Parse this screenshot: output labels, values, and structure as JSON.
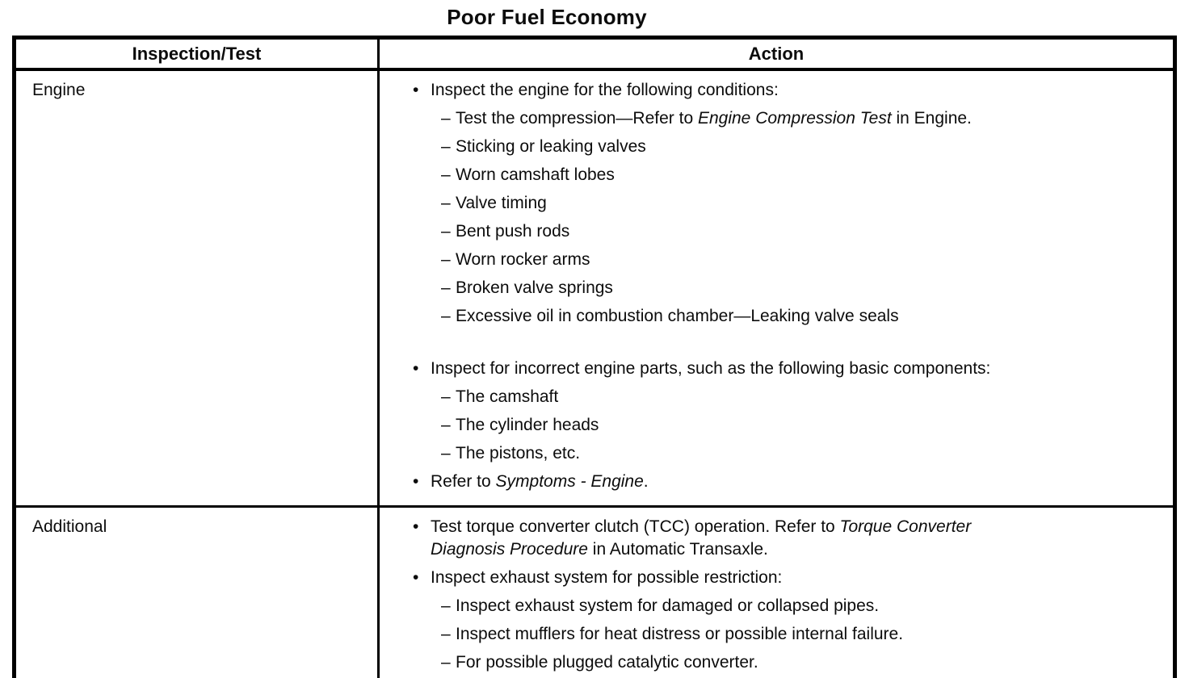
{
  "title": "Poor Fuel Economy",
  "glyphs": {
    "bullet": "•",
    "dash": "–"
  },
  "colors": {
    "ink": "#0c0c0c",
    "paper": "#ffffff",
    "border": "#000000"
  },
  "table": {
    "headers": [
      "Inspection/Test",
      "Action"
    ],
    "rows": [
      {
        "inspection": "Engine",
        "actions": [
          {
            "kind": "bullet",
            "segments": [
              {
                "t": "Inspect the engine for the following conditions:"
              }
            ]
          },
          {
            "kind": "dash",
            "segments": [
              {
                "t": "Test the compression—Refer to "
              },
              {
                "t": "Engine Compression Test",
                "i": true
              },
              {
                "t": " in Engine."
              }
            ]
          },
          {
            "kind": "dash",
            "segments": [
              {
                "t": "Sticking or leaking valves"
              }
            ]
          },
          {
            "kind": "dash",
            "segments": [
              {
                "t": "Worn camshaft lobes"
              }
            ]
          },
          {
            "kind": "dash",
            "segments": [
              {
                "t": "Valve timing"
              }
            ]
          },
          {
            "kind": "dash",
            "segments": [
              {
                "t": "Bent push rods"
              }
            ]
          },
          {
            "kind": "dash",
            "segments": [
              {
                "t": "Worn rocker arms"
              }
            ]
          },
          {
            "kind": "dash",
            "segments": [
              {
                "t": "Broken valve springs"
              }
            ]
          },
          {
            "kind": "dash",
            "segments": [
              {
                "t": "Excessive oil in combustion chamber—Leaking valve seals"
              }
            ]
          },
          {
            "kind": "gap"
          },
          {
            "kind": "bullet",
            "segments": [
              {
                "t": "Inspect for incorrect engine parts, such as the following basic components:"
              }
            ]
          },
          {
            "kind": "dash",
            "segments": [
              {
                "t": "The camshaft"
              }
            ]
          },
          {
            "kind": "dash",
            "segments": [
              {
                "t": "The cylinder heads"
              }
            ]
          },
          {
            "kind": "dash",
            "segments": [
              {
                "t": "The pistons, etc."
              }
            ]
          },
          {
            "kind": "bullet",
            "segments": [
              {
                "t": "Refer to "
              },
              {
                "t": "Symptoms - Engine",
                "i": true
              },
              {
                "t": "."
              }
            ]
          }
        ]
      },
      {
        "inspection": "Additional",
        "actions": [
          {
            "kind": "bullet",
            "segments": [
              {
                "t": "Test torque converter clutch (TCC) operation. Refer to "
              },
              {
                "t": "Torque Converter",
                "i": true
              },
              {
                "br": true
              },
              {
                "t": "Diagnosis Procedure",
                "i": true
              },
              {
                "t": " in Automatic Transaxle."
              }
            ]
          },
          {
            "kind": "bullet",
            "segments": [
              {
                "t": "Inspect exhaust system for possible restriction:"
              }
            ]
          },
          {
            "kind": "dash",
            "segments": [
              {
                "t": "Inspect exhaust system for damaged or collapsed pipes."
              }
            ]
          },
          {
            "kind": "dash",
            "segments": [
              {
                "t": "Inspect mufflers for heat distress or possible internal failure."
              }
            ]
          },
          {
            "kind": "dash",
            "segments": [
              {
                "t": "For possible plugged catalytic converter."
              }
            ]
          }
        ]
      }
    ]
  }
}
